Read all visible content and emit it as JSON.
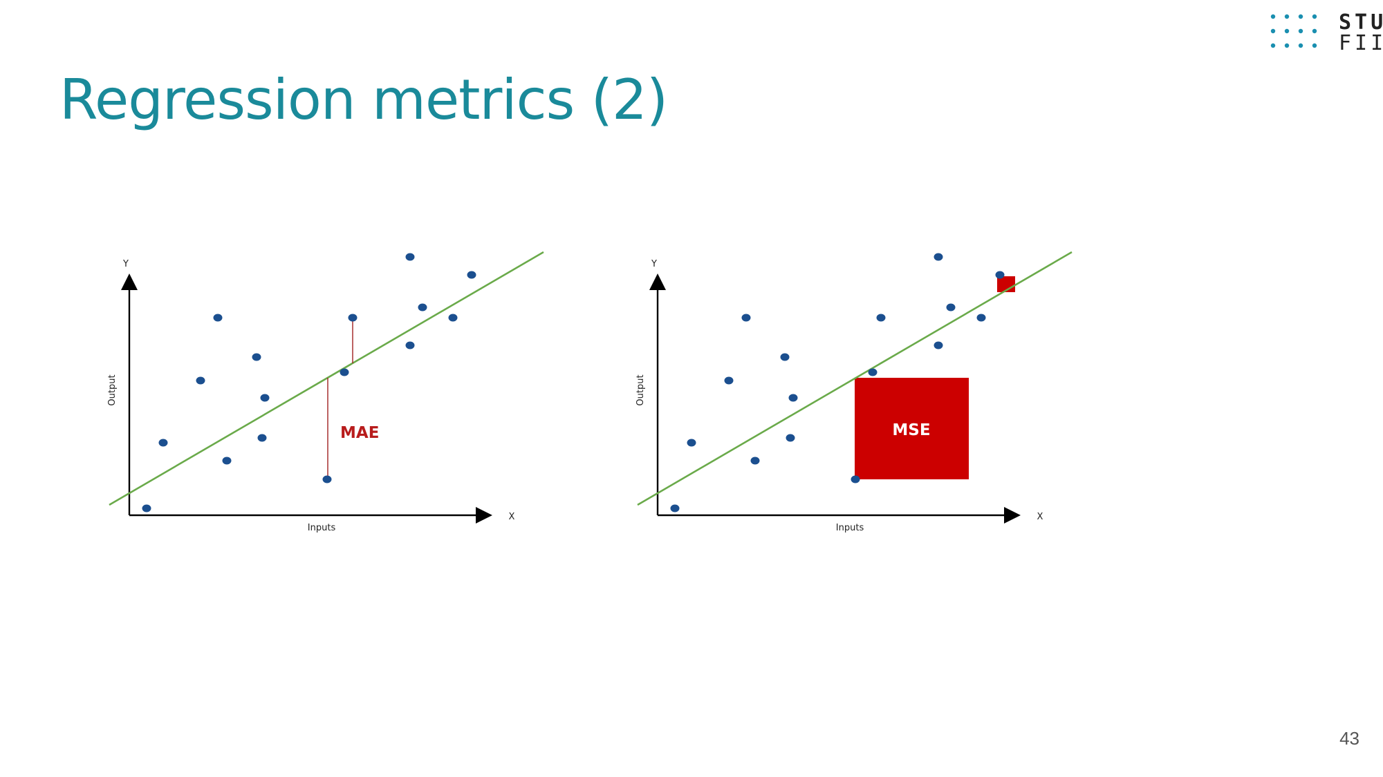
{
  "slide": {
    "title": "Regression metrics (2)",
    "page_number": "43"
  },
  "logo": {
    "line1": "STU",
    "line2": "FIIT",
    "dot_color": "#1a8fb0"
  },
  "colors": {
    "title": "#1a8a9a",
    "point": "#1b4f8f",
    "regression_line": "#6aaa4a",
    "error_red": "#cc0000",
    "axis": "#000000"
  },
  "diagrams": [
    {
      "axis_y_letter": "Y",
      "axis_x_letter": "X",
      "ylabel": "Output",
      "xlabel": "Inputs",
      "metric": "MAE"
    },
    {
      "axis_y_letter": "Y",
      "axis_x_letter": "X",
      "ylabel": "Output",
      "xlabel": "Inputs",
      "metric": "MSE"
    }
  ]
}
